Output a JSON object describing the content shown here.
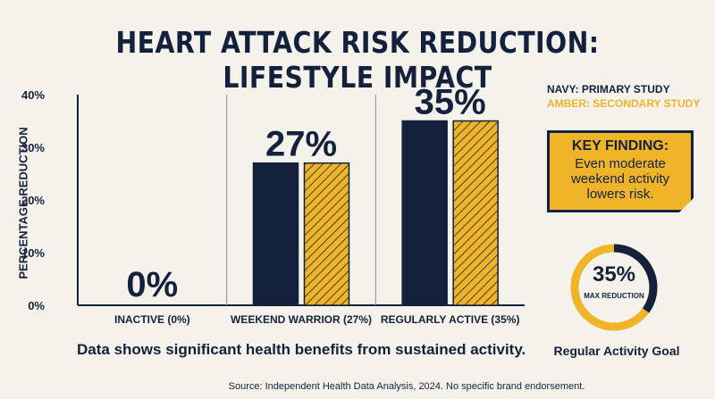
{
  "header": {
    "title": "HEART ATTACK RISK REDUCTION: LIFESTYLE IMPACT"
  },
  "chart_data": {
    "type": "bar",
    "title": "HEART ATTACK RISK REDUCTION: LIFESTYLE IMPACT",
    "xlabel": "",
    "ylabel": "PERCENTAGE REDUCTION",
    "ylim": [
      0,
      40
    ],
    "yticks": [
      0,
      10,
      20,
      30,
      40
    ],
    "ytick_labels": [
      "0%",
      "10%",
      "20%",
      "30%",
      "40%"
    ],
    "categories": [
      "INACTIVE (0%)",
      "WEEKEND WARRIOR (27%)",
      "REGULARLY ACTIVE (35%)"
    ],
    "category_value_labels": [
      "0%",
      "27%",
      "35%"
    ],
    "series": [
      {
        "name": "NAVY: PRIMARY STUDY",
        "values": [
          0,
          27,
          35
        ],
        "color": "#14213d"
      },
      {
        "name": "AMBER: SECONDARY STUDY",
        "values": [
          0,
          27,
          35
        ],
        "color": "#f0b429",
        "pattern": "hatched"
      }
    ],
    "legend_position": "top-right",
    "grid": false
  },
  "legend": {
    "navy": "NAVY: PRIMARY STUDY",
    "amber": "AMBER: SECONDARY STUDY"
  },
  "key_finding": {
    "title": "KEY FINDING:",
    "text": "Even moderate weekend activity lowers risk."
  },
  "gauge": {
    "value": "35%",
    "caption": "MAX REDUCTION",
    "fraction": 0.35,
    "label": "Regular Activity Goal"
  },
  "summary": "Data shows significant health benefits from sustained activity.",
  "source": "Source: Independent Health Data Analysis, 2024. No specific brand endorsement.",
  "colors": {
    "navy": "#14213d",
    "amber": "#f0b429",
    "background": "#f4f2ea"
  }
}
